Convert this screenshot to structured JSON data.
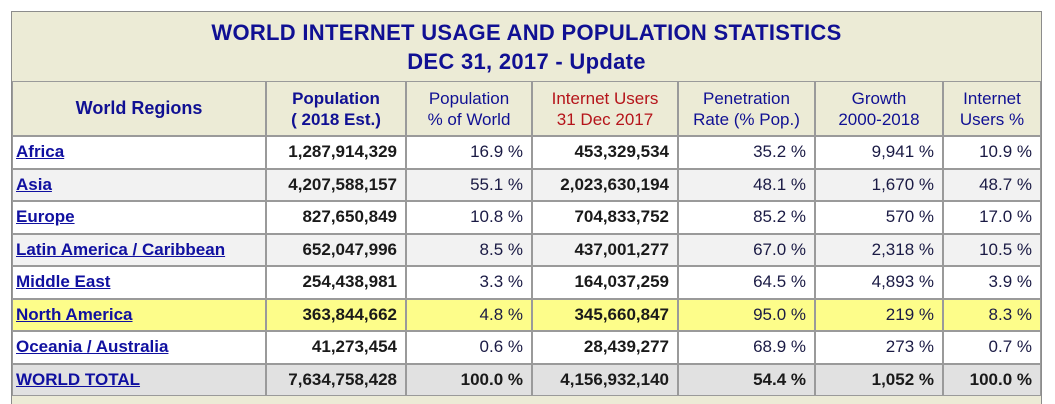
{
  "title": {
    "line1": "WORLD INTERNET USAGE AND POPULATION STATISTICS",
    "line2": "DEC 31, 2017 - Update"
  },
  "headers": {
    "region": "World Regions",
    "population_l1": "Population",
    "population_l2": "( 2018 Est.)",
    "pct_world_l1": "Population",
    "pct_world_l2": "% of World",
    "internet_l1": "Internet Users",
    "internet_l2": "31 Dec 2017",
    "penetration_l1": "Penetration",
    "penetration_l2": "Rate (% Pop.)",
    "growth_l1": "Growth",
    "growth_l2": "2000-2018",
    "users_pct_l1": "Internet",
    "users_pct_l2": "Users %"
  },
  "rows": [
    {
      "region": "Africa",
      "population": "1,287,914,329",
      "pct_world": "16.9 %",
      "internet": "453,329,534",
      "penetration": "35.2 %",
      "growth": "9,941 %",
      "users_pct": "10.9 %"
    },
    {
      "region": "Asia",
      "population": "4,207,588,157",
      "pct_world": "55.1 %",
      "internet": "2,023,630,194",
      "penetration": "48.1 %",
      "growth": "1,670 %",
      "users_pct": "48.7 %"
    },
    {
      "region": "Europe",
      "population": "827,650,849",
      "pct_world": "10.8 %",
      "internet": "704,833,752",
      "penetration": "85.2 %",
      "growth": "570 %",
      "users_pct": "17.0 %"
    },
    {
      "region": "Latin America / Caribbean",
      "population": "652,047,996",
      "pct_world": "8.5 %",
      "internet": "437,001,277",
      "penetration": "67.0 %",
      "growth": "2,318 %",
      "users_pct": "10.5 %"
    },
    {
      "region": "Middle East",
      "population": "254,438,981",
      "pct_world": "3.3 %",
      "internet": "164,037,259",
      "penetration": "64.5 %",
      "growth": "4,893 %",
      "users_pct": "3.9 %"
    },
    {
      "region": "North America",
      "population": "363,844,662",
      "pct_world": "4.8 %",
      "internet": "345,660,847",
      "penetration": "95.0 %",
      "growth": "219 %",
      "users_pct": "8.3 %"
    },
    {
      "region": "Oceania / Australia",
      "population": "41,273,454",
      "pct_world": "0.6 %",
      "internet": "28,439,277",
      "penetration": "68.9 %",
      "growth": "273 %",
      "users_pct": "0.7 %"
    }
  ],
  "total": {
    "region": "WORLD TOTAL",
    "population": "7,634,758,428",
    "pct_world": "100.0 %",
    "internet": "4,156,932,140",
    "penetration": "54.4 %",
    "growth": "1,052 %",
    "users_pct": "100.0 %"
  },
  "colors": {
    "title": "#101093",
    "header_bg": "#ecebd6",
    "highlight_row": "#fdfd8a",
    "internet_header": "#b5141a",
    "link": "#1010a0"
  }
}
